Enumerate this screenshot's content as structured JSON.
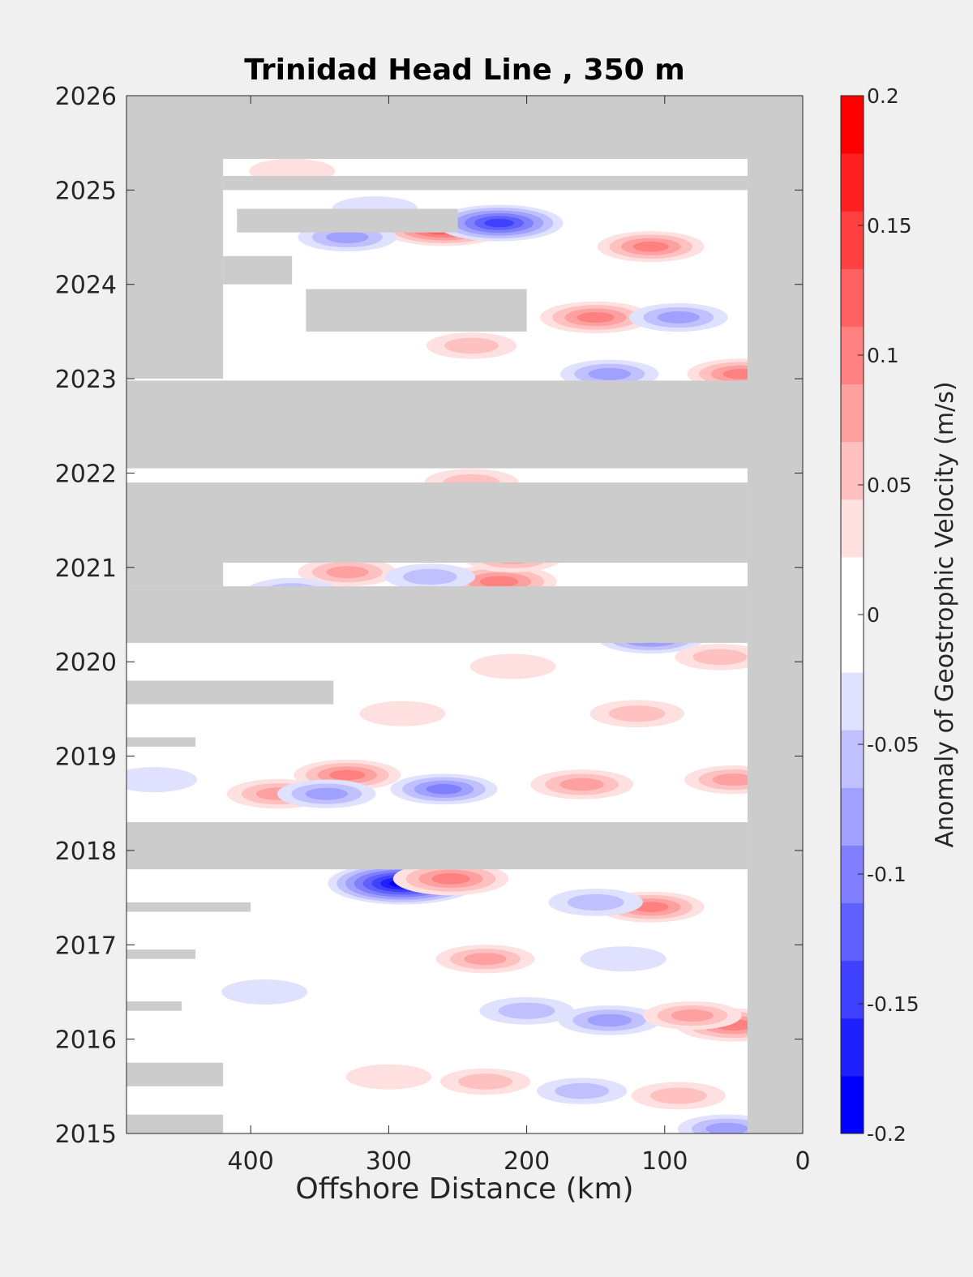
{
  "chart_data": {
    "type": "heatmap",
    "title": "Trinidad Head Line , 350 m",
    "xlabel": "Offshore Distance (km)",
    "ylabel": "",
    "xlim": [
      490,
      0
    ],
    "x_reversed": true,
    "ylim": [
      2015,
      2026
    ],
    "xticks": [
      400,
      300,
      200,
      100,
      0
    ],
    "yticks": [
      2015,
      2016,
      2017,
      2018,
      2019,
      2020,
      2021,
      2022,
      2023,
      2024,
      2025,
      2026
    ],
    "grid": false,
    "colorbar": {
      "label": "Anomaly of Geostrophic Velocity (m/s)",
      "limits": [
        -0.2,
        0.2
      ],
      "ticks": [
        "0.2",
        "0.15",
        "0.1",
        "0.05",
        "0",
        "-0.05",
        "-0.1",
        "-0.15",
        "-0.2"
      ],
      "levels": 16,
      "colors": [
        "#0000ff",
        "#2020ff",
        "#4040ff",
        "#6060ff",
        "#8080ff",
        "#a0a0ff",
        "#c0c0ff",
        "#e0e0ff",
        "#ffffff",
        "#ffffff",
        "#ffe0e0",
        "#ffc0c0",
        "#ffa0a0",
        "#ff8080",
        "#ff6060",
        "#ff4040",
        "#ff2020",
        "#ff0000"
      ],
      "nodata_color": "#cccccc",
      "missing_color": "#cccccc"
    },
    "no_data_regions": [
      {
        "x": [
          490,
          0
        ],
        "y": [
          2025.33,
          2026
        ]
      },
      {
        "x": [
          40,
          0
        ],
        "y": [
          2015,
          2026
        ]
      },
      {
        "x": [
          490,
          420
        ],
        "y": [
          2023.0,
          2025.33
        ]
      },
      {
        "x": [
          420,
          40
        ],
        "y": [
          2025.0,
          2025.15
        ]
      },
      {
        "x": [
          410,
          250
        ],
        "y": [
          2024.55,
          2024.8
        ]
      },
      {
        "x": [
          420,
          370
        ],
        "y": [
          2024.0,
          2024.3
        ]
      },
      {
        "x": [
          360,
          200
        ],
        "y": [
          2023.5,
          2023.95
        ]
      },
      {
        "x": [
          490,
          0
        ],
        "y": [
          2022.05,
          2022.98
        ]
      },
      {
        "x": [
          490,
          40
        ],
        "y": [
          2021.05,
          2021.9
        ]
      },
      {
        "x": [
          490,
          420
        ],
        "y": [
          2020.8,
          2021.05
        ]
      },
      {
        "x": [
          490,
          40
        ],
        "y": [
          2020.2,
          2020.8
        ]
      },
      {
        "x": [
          490,
          340
        ],
        "y": [
          2019.55,
          2019.8
        ]
      },
      {
        "x": [
          490,
          440
        ],
        "y": [
          2019.1,
          2019.2
        ]
      },
      {
        "x": [
          490,
          40
        ],
        "y": [
          2017.8,
          2018.3
        ]
      },
      {
        "x": [
          490,
          400
        ],
        "y": [
          2017.35,
          2017.45
        ]
      },
      {
        "x": [
          490,
          440
        ],
        "y": [
          2016.85,
          2016.95
        ]
      },
      {
        "x": [
          490,
          450
        ],
        "y": [
          2016.3,
          2016.4
        ]
      },
      {
        "x": [
          490,
          420
        ],
        "y": [
          2015.5,
          2015.75
        ]
      },
      {
        "x": [
          490,
          420
        ],
        "y": [
          2015.0,
          2015.2
        ]
      }
    ],
    "anomalies": [
      {
        "x": 260,
        "y": 2024.6,
        "value": 0.15
      },
      {
        "x": 220,
        "y": 2024.65,
        "value": -0.15
      },
      {
        "x": 330,
        "y": 2024.5,
        "value": -0.08
      },
      {
        "x": 110,
        "y": 2024.4,
        "value": 0.1
      },
      {
        "x": 150,
        "y": 2023.65,
        "value": 0.11
      },
      {
        "x": 90,
        "y": 2023.65,
        "value": -0.08
      },
      {
        "x": 310,
        "y": 2024.8,
        "value": -0.05
      },
      {
        "x": 370,
        "y": 2025.2,
        "value": 0.05
      },
      {
        "x": 45,
        "y": 2023.05,
        "value": 0.1
      },
      {
        "x": 140,
        "y": 2023.05,
        "value": -0.08
      },
      {
        "x": 240,
        "y": 2023.35,
        "value": 0.06
      },
      {
        "x": 240,
        "y": 2021.9,
        "value": 0.07
      },
      {
        "x": 220,
        "y": 2020.85,
        "value": 0.12
      },
      {
        "x": 330,
        "y": 2020.95,
        "value": 0.08
      },
      {
        "x": 210,
        "y": 2021.1,
        "value": 0.08
      },
      {
        "x": 270,
        "y": 2020.9,
        "value": -0.06
      },
      {
        "x": 370,
        "y": 2020.75,
        "value": -0.06
      },
      {
        "x": 110,
        "y": 2020.25,
        "value": -0.1
      },
      {
        "x": 60,
        "y": 2020.05,
        "value": 0.06
      },
      {
        "x": 210,
        "y": 2019.95,
        "value": 0.05
      },
      {
        "x": 120,
        "y": 2019.45,
        "value": 0.07
      },
      {
        "x": 290,
        "y": 2019.45,
        "value": 0.05
      },
      {
        "x": 260,
        "y": 2018.65,
        "value": -0.1
      },
      {
        "x": 330,
        "y": 2018.8,
        "value": 0.1
      },
      {
        "x": 380,
        "y": 2018.6,
        "value": 0.09
      },
      {
        "x": 345,
        "y": 2018.6,
        "value": -0.08
      },
      {
        "x": 160,
        "y": 2018.7,
        "value": 0.09
      },
      {
        "x": 50,
        "y": 2018.75,
        "value": 0.08
      },
      {
        "x": 290,
        "y": 2017.65,
        "value": -0.2
      },
      {
        "x": 255,
        "y": 2017.7,
        "value": 0.12
      },
      {
        "x": 110,
        "y": 2017.4,
        "value": 0.1
      },
      {
        "x": 150,
        "y": 2017.45,
        "value": -0.07
      },
      {
        "x": 230,
        "y": 2016.85,
        "value": 0.08
      },
      {
        "x": 130,
        "y": 2016.85,
        "value": -0.05
      },
      {
        "x": 140,
        "y": 2016.2,
        "value": -0.09
      },
      {
        "x": 50,
        "y": 2016.15,
        "value": 0.12
      },
      {
        "x": 80,
        "y": 2016.25,
        "value": 0.08
      },
      {
        "x": 200,
        "y": 2016.3,
        "value": -0.07
      },
      {
        "x": 300,
        "y": 2015.6,
        "value": 0.05
      },
      {
        "x": 230,
        "y": 2015.55,
        "value": 0.06
      },
      {
        "x": 160,
        "y": 2015.45,
        "value": -0.06
      },
      {
        "x": 90,
        "y": 2015.4,
        "value": 0.07
      },
      {
        "x": 55,
        "y": 2015.05,
        "value": -0.08
      },
      {
        "x": 390,
        "y": 2016.5,
        "value": -0.05
      },
      {
        "x": 470,
        "y": 2018.75,
        "value": -0.05
      }
    ]
  }
}
